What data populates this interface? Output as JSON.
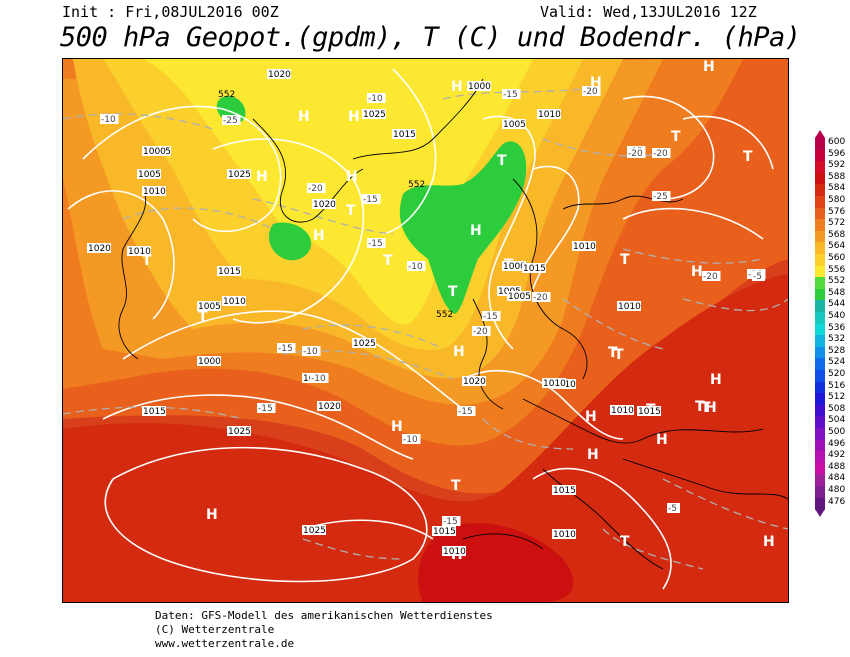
{
  "header": {
    "init": "Init : Fri,08JUL2016 00Z",
    "valid": "Valid: Wed,13JUL2016 12Z",
    "title": "500 hPa Geopot.(gpdm), T (C) und Bodendr. (hPa)"
  },
  "legend": {
    "levels": [
      "600",
      "596",
      "592",
      "588",
      "584",
      "580",
      "576",
      "572",
      "568",
      "564",
      "560",
      "556",
      "552",
      "548",
      "544",
      "540",
      "536",
      "532",
      "528",
      "524",
      "520",
      "516",
      "512",
      "508",
      "504",
      "500",
      "496",
      "492",
      "488",
      "484",
      "480",
      "476"
    ],
    "colors": [
      "#b8004a",
      "#c8003a",
      "#d40c2a",
      "#cc1010",
      "#d42a10",
      "#e04414",
      "#e8601c",
      "#f07c20",
      "#f49a24",
      "#f8b828",
      "#fcd02c",
      "#fce830",
      "#50dc3c",
      "#2ccc3c",
      "#18b4a4",
      "#18c8c0",
      "#10d8d8",
      "#10b4e0",
      "#1090e8",
      "#106ce8",
      "#1050e8",
      "#1030e0",
      "#2018d8",
      "#4010d0",
      "#6010c8",
      "#8010c0",
      "#a010b8",
      "#b810b0",
      "#c810a8",
      "#a0209c",
      "#802090",
      "#601880"
    ]
  },
  "map": {
    "pressure_labels": [
      "1020",
      "1015",
      "1010",
      "1005",
      "1000",
      "1025",
      "1015",
      "1010",
      "1005",
      "1000",
      "1020",
      "1025",
      "1015",
      "1010",
      "1020",
      "1010",
      "1005",
      "1000",
      "1015",
      "1025",
      "1020",
      "1015",
      "1010",
      "1025",
      "1015",
      "1010",
      "1005",
      "1000",
      "1015",
      "1010",
      "1010",
      "1010",
      "1015",
      "1010",
      "1015",
      "1010",
      "1025",
      "1020",
      "1005"
    ],
    "temp_labels": [
      "-10",
      "-15",
      "-20",
      "-25",
      "-20",
      "-15",
      "-10",
      "-15",
      "-20",
      "-25",
      "-20",
      "-15",
      "-10",
      "-15",
      "-20",
      "-15",
      "-10",
      "-10",
      "-15",
      "-20",
      "-5",
      "-10",
      "-5",
      "-15",
      "-20",
      "-10",
      "-15"
    ],
    "high_symbol": "H",
    "low_symbol": "T",
    "geopot_labels": [
      "552",
      "552",
      "552"
    ]
  },
  "footer": {
    "line1": "Daten: GFS-Modell des amerikanischen Wetterdienstes",
    "line2": "(C) Wetterzentrale",
    "line3": "www.wetterzentrale.de"
  }
}
